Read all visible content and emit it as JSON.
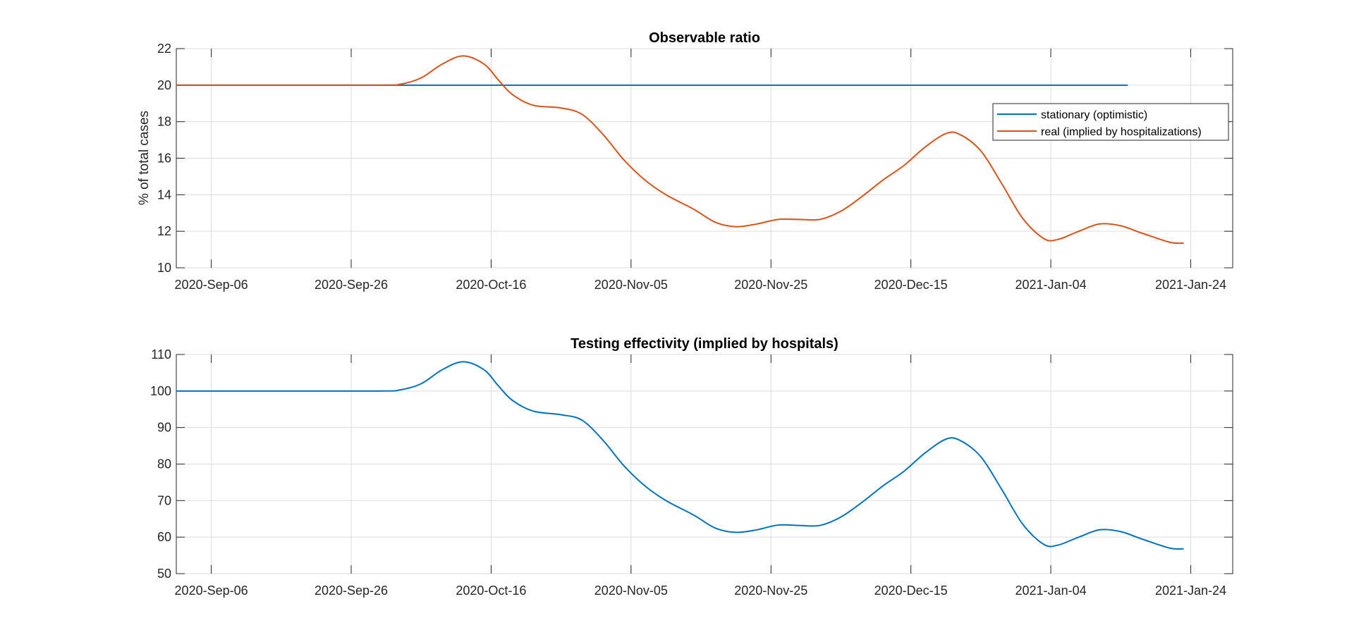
{
  "chart_data": [
    {
      "type": "line",
      "title": "Observable ratio",
      "xlabel": "",
      "ylabel": "% of total cases",
      "x_ticks": [
        "2020-Sep-06",
        "2020-Sep-26",
        "2020-Oct-16",
        "2020-Nov-05",
        "2020-Nov-25",
        "2020-Dec-15",
        "2021-Jan-04",
        "2021-Jan-24"
      ],
      "xlim": [
        "2020-Sep-01",
        "2021-Jan-30"
      ],
      "ylim": [
        10,
        22
      ],
      "y_ticks": [
        10,
        12,
        14,
        16,
        18,
        20,
        22
      ],
      "grid": true,
      "legend": "right, below top",
      "series": [
        {
          "name": "stationary (optimistic)",
          "color": "#0072BD",
          "points": [
            [
              "2020-Sep-01",
              20
            ],
            [
              "2021-Jan-15",
              20
            ]
          ]
        },
        {
          "name": "real (implied by hospitalizations)",
          "color": "#D95319",
          "points": [
            [
              "2020-Sep-01",
              20
            ],
            [
              "2020-Sep-15",
              20
            ],
            [
              "2020-Sep-30",
              20
            ],
            [
              "2020-Oct-03",
              20.05
            ],
            [
              "2020-Oct-06",
              20.4
            ],
            [
              "2020-Oct-09",
              21.15
            ],
            [
              "2020-Oct-12",
              21.6
            ],
            [
              "2020-Oct-15",
              21.15
            ],
            [
              "2020-Oct-17",
              20.3
            ],
            [
              "2020-Oct-19",
              19.5
            ],
            [
              "2020-Oct-22",
              18.9
            ],
            [
              "2020-Oct-26",
              18.75
            ],
            [
              "2020-Oct-29",
              18.4
            ],
            [
              "2020-Nov-01",
              17.3
            ],
            [
              "2020-Nov-04",
              15.9
            ],
            [
              "2020-Nov-07",
              14.8
            ],
            [
              "2020-Nov-10",
              14.0
            ],
            [
              "2020-Nov-14",
              13.2
            ],
            [
              "2020-Nov-17",
              12.5
            ],
            [
              "2020-Nov-20",
              12.25
            ],
            [
              "2020-Nov-23",
              12.4
            ],
            [
              "2020-Nov-26",
              12.65
            ],
            [
              "2020-Nov-29",
              12.65
            ],
            [
              "2020-Dec-02",
              12.65
            ],
            [
              "2020-Dec-05",
              13.1
            ],
            [
              "2020-Dec-08",
              13.9
            ],
            [
              "2020-Dec-11",
              14.8
            ],
            [
              "2020-Dec-14",
              15.6
            ],
            [
              "2020-Dec-17",
              16.6
            ],
            [
              "2020-Dec-20",
              17.35
            ],
            [
              "2020-Dec-22",
              17.3
            ],
            [
              "2020-Dec-25",
              16.4
            ],
            [
              "2020-Dec-28",
              14.6
            ],
            [
              "2020-Dec-31",
              12.7
            ],
            [
              "2021-Jan-03",
              11.6
            ],
            [
              "2021-Jan-05",
              11.55
            ],
            [
              "2021-Jan-08",
              12.0
            ],
            [
              "2021-Jan-11",
              12.4
            ],
            [
              "2021-Jan-14",
              12.3
            ],
            [
              "2021-Jan-17",
              11.9
            ],
            [
              "2021-Jan-21",
              11.4
            ],
            [
              "2021-Jan-23",
              11.35
            ]
          ]
        }
      ]
    },
    {
      "type": "line",
      "title": "Testing effectivity (implied by hospitals)",
      "xlabel": "",
      "ylabel": "",
      "x_ticks": [
        "2020-Sep-06",
        "2020-Sep-26",
        "2020-Oct-16",
        "2020-Nov-05",
        "2020-Nov-25",
        "2020-Dec-15",
        "2021-Jan-04",
        "2021-Jan-24"
      ],
      "xlim": [
        "2020-Sep-01",
        "2021-Jan-30"
      ],
      "ylim": [
        50,
        110
      ],
      "y_ticks": [
        50,
        60,
        70,
        80,
        90,
        100,
        110
      ],
      "grid": true,
      "series": [
        {
          "color": "#0072BD",
          "points": [
            [
              "2020-Sep-01",
              100
            ],
            [
              "2020-Sep-15",
              100
            ],
            [
              "2020-Sep-30",
              100
            ],
            [
              "2020-Oct-03",
              100.3
            ],
            [
              "2020-Oct-06",
              102
            ],
            [
              "2020-Oct-09",
              105.8
            ],
            [
              "2020-Oct-12",
              108
            ],
            [
              "2020-Oct-15",
              105.8
            ],
            [
              "2020-Oct-17",
              101.5
            ],
            [
              "2020-Oct-19",
              97.5
            ],
            [
              "2020-Oct-22",
              94.5
            ],
            [
              "2020-Oct-26",
              93.5
            ],
            [
              "2020-Oct-29",
              92
            ],
            [
              "2020-Nov-01",
              86.5
            ],
            [
              "2020-Nov-04",
              79.5
            ],
            [
              "2020-Nov-07",
              74
            ],
            [
              "2020-Nov-10",
              70
            ],
            [
              "2020-Nov-14",
              66
            ],
            [
              "2020-Nov-17",
              62.5
            ],
            [
              "2020-Nov-20",
              61.3
            ],
            [
              "2020-Nov-23",
              62
            ],
            [
              "2020-Nov-26",
              63.3
            ],
            [
              "2020-Nov-29",
              63.2
            ],
            [
              "2020-Dec-02",
              63.2
            ],
            [
              "2020-Dec-05",
              65.5
            ],
            [
              "2020-Dec-08",
              69.5
            ],
            [
              "2020-Dec-11",
              74
            ],
            [
              "2020-Dec-14",
              78
            ],
            [
              "2020-Dec-17",
              83
            ],
            [
              "2020-Dec-20",
              86.8
            ],
            [
              "2020-Dec-22",
              86.5
            ],
            [
              "2020-Dec-25",
              82
            ],
            [
              "2020-Dec-28",
              73
            ],
            [
              "2020-Dec-31",
              63.5
            ],
            [
              "2021-Jan-03",
              58
            ],
            [
              "2021-Jan-05",
              57.8
            ],
            [
              "2021-Jan-08",
              60
            ],
            [
              "2021-Jan-11",
              62
            ],
            [
              "2021-Jan-14",
              61.5
            ],
            [
              "2021-Jan-17",
              59.5
            ],
            [
              "2021-Jan-21",
              57
            ],
            [
              "2021-Jan-23",
              56.8
            ]
          ]
        }
      ]
    }
  ]
}
